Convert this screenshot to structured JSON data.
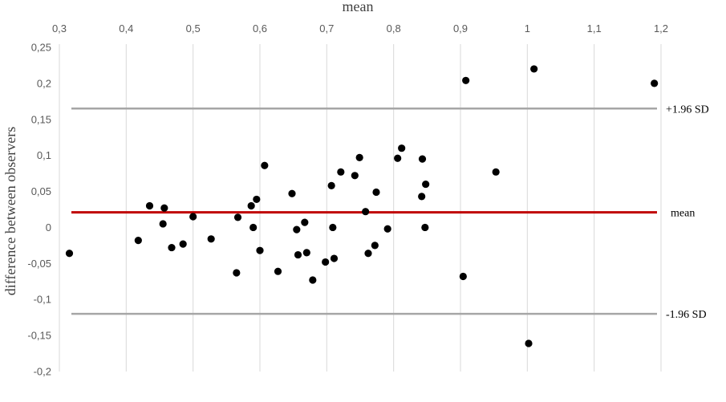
{
  "chart_data": {
    "type": "scatter",
    "title": "",
    "xlabel": "mean",
    "ylabel": "difference between observers",
    "x_axis_position": "top",
    "xlim": [
      0.3,
      1.2
    ],
    "ylim": [
      -0.2,
      0.25
    ],
    "x_ticks": [
      0.3,
      0.4,
      0.5,
      0.6,
      0.7,
      0.8,
      0.9,
      1.0,
      1.1,
      1.2
    ],
    "x_tick_labels": [
      "0,3",
      "0,4",
      "0,5",
      "0,6",
      "0,7",
      "0,8",
      "0,9",
      "1",
      "1,1",
      "1,2"
    ],
    "y_ticks": [
      0.25,
      0.2,
      0.15,
      0.1,
      0.05,
      0,
      -0.05,
      -0.1,
      -0.15,
      -0.2
    ],
    "y_tick_labels": [
      "0,25",
      "0,2",
      "0,15",
      "0,1",
      "0,05",
      "0",
      "-0,05",
      "-0,1",
      "-0,15",
      "-0,2"
    ],
    "grid": "vertical",
    "colors": {
      "points": "#000000",
      "mean_line": "#c00000",
      "sd_lines": "#a6a6a6",
      "grid": "#d9d9d9"
    },
    "reference_lines": [
      {
        "name": "upper",
        "label": "+1.96 SD",
        "y": 0.165
      },
      {
        "name": "mean",
        "label": "mean",
        "y": 0.021
      },
      {
        "name": "lower",
        "label": "-1.96 SD",
        "y": -0.12
      }
    ],
    "points": [
      {
        "x": 0.315,
        "y": -0.036
      },
      {
        "x": 0.418,
        "y": -0.018
      },
      {
        "x": 0.435,
        "y": 0.03
      },
      {
        "x": 0.455,
        "y": 0.005
      },
      {
        "x": 0.457,
        "y": 0.027
      },
      {
        "x": 0.468,
        "y": -0.028
      },
      {
        "x": 0.485,
        "y": -0.023
      },
      {
        "x": 0.5,
        "y": 0.015
      },
      {
        "x": 0.527,
        "y": -0.016
      },
      {
        "x": 0.565,
        "y": -0.063
      },
      {
        "x": 0.567,
        "y": 0.014
      },
      {
        "x": 0.587,
        "y": 0.03
      },
      {
        "x": 0.59,
        "y": 0.0
      },
      {
        "x": 0.595,
        "y": 0.039
      },
      {
        "x": 0.6,
        "y": -0.032
      },
      {
        "x": 0.607,
        "y": 0.086
      },
      {
        "x": 0.627,
        "y": -0.061
      },
      {
        "x": 0.648,
        "y": 0.047
      },
      {
        "x": 0.655,
        "y": -0.003
      },
      {
        "x": 0.657,
        "y": -0.038
      },
      {
        "x": 0.667,
        "y": 0.007
      },
      {
        "x": 0.67,
        "y": -0.035
      },
      {
        "x": 0.679,
        "y": -0.073
      },
      {
        "x": 0.698,
        "y": -0.048
      },
      {
        "x": 0.707,
        "y": 0.058
      },
      {
        "x": 0.709,
        "y": 0.0
      },
      {
        "x": 0.711,
        "y": -0.043
      },
      {
        "x": 0.721,
        "y": 0.077
      },
      {
        "x": 0.742,
        "y": 0.072
      },
      {
        "x": 0.749,
        "y": 0.097
      },
      {
        "x": 0.758,
        "y": 0.022
      },
      {
        "x": 0.762,
        "y": -0.036
      },
      {
        "x": 0.772,
        "y": -0.025
      },
      {
        "x": 0.774,
        "y": 0.049
      },
      {
        "x": 0.791,
        "y": -0.002
      },
      {
        "x": 0.806,
        "y": 0.096
      },
      {
        "x": 0.812,
        "y": 0.11
      },
      {
        "x": 0.842,
        "y": 0.043
      },
      {
        "x": 0.843,
        "y": 0.095
      },
      {
        "x": 0.847,
        "y": 0.0
      },
      {
        "x": 0.848,
        "y": 0.06
      },
      {
        "x": 0.904,
        "y": -0.068
      },
      {
        "x": 0.908,
        "y": 0.204
      },
      {
        "x": 0.953,
        "y": 0.077
      },
      {
        "x": 1.002,
        "y": -0.161
      },
      {
        "x": 1.01,
        "y": 0.22
      },
      {
        "x": 1.19,
        "y": 0.2
      }
    ]
  }
}
